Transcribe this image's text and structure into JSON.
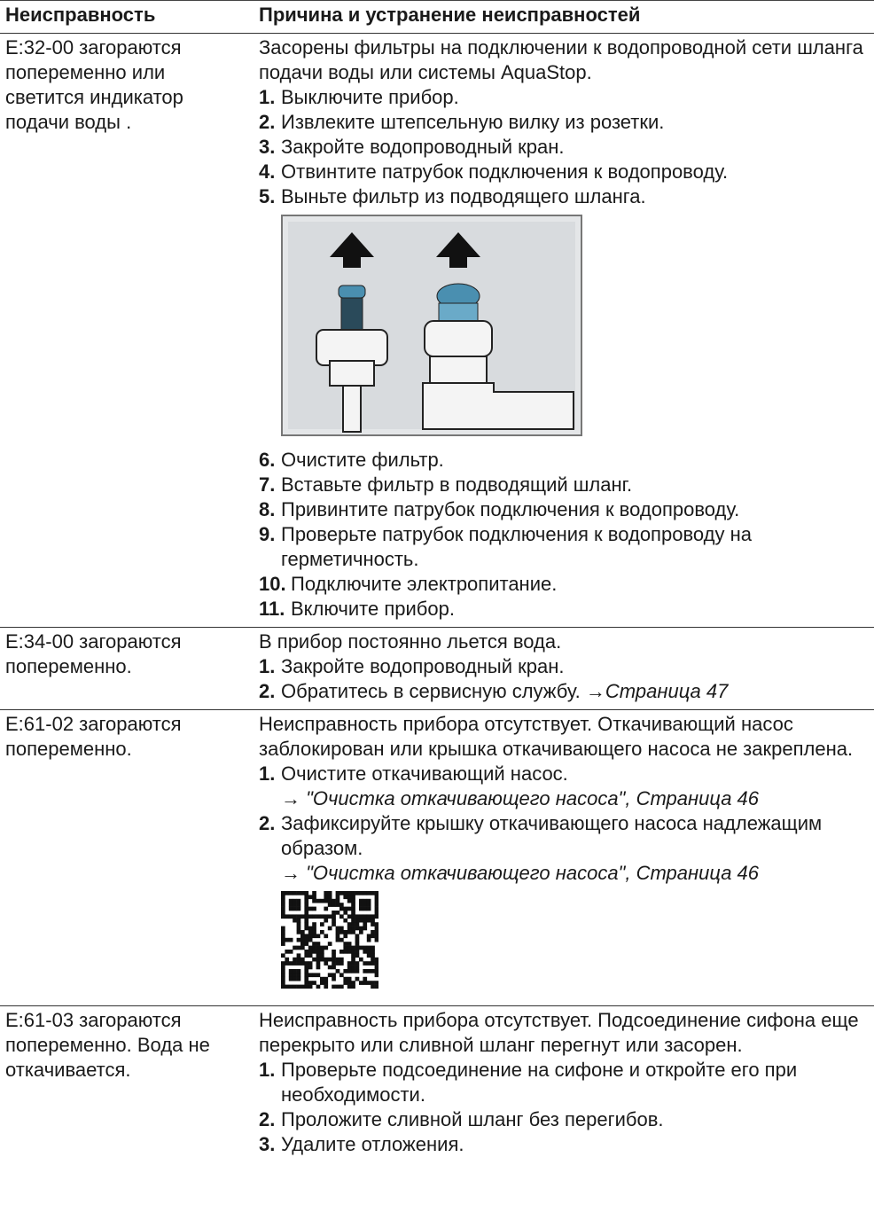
{
  "table": {
    "header": [
      "Неисправность",
      "Причина и устранение неисправностей"
    ],
    "rows": [
      {
        "fault": "E:32-00 загораются попеременно или светится индикатор подачи воды .",
        "intro": "Засорены фильтры на подключении к водопроводной сети шланга подачи воды или системы AquaStop.",
        "steps": [
          {
            "num": "1.",
            "text": "Выключите прибор."
          },
          {
            "num": "2.",
            "text": "Извлеките штепсельную вилку из розетки."
          },
          {
            "num": "3.",
            "text": "Закройте водопроводный кран."
          },
          {
            "num": "4.",
            "text": "Отвинтите патрубок подключения к водопроводу."
          },
          {
            "num": "5.",
            "text": "Выньте фильтр из подводящего шланга."
          },
          {
            "num": "6.",
            "text": "Очистите фильтр."
          },
          {
            "num": "7.",
            "text": "Вставьте фильтр в подводящий шланг."
          },
          {
            "num": "8.",
            "text": "Привинтите патрубок подключения к водопроводу."
          },
          {
            "num": "9.",
            "text": "Проверьте патрубок подключения к водопроводу на герметичность."
          },
          {
            "num": "10.",
            "text": "Подключите электропитание."
          },
          {
            "num": "11.",
            "text": "Включите прибор."
          }
        ]
      },
      {
        "fault": "E:34-00 загораются попеременно.",
        "intro": "В прибор постоянно льется вода.",
        "steps": [
          {
            "num": "1.",
            "text": "Закройте водопроводный кран."
          },
          {
            "num": "2.",
            "text": "Обратитесь в сервисную службу.",
            "link": "→Страница 47"
          }
        ]
      },
      {
        "fault": "E:61-02 загораются попеременно.",
        "intro": "Неисправность прибора отсутствует. Откачивающий насос заблокирован или крышка откачивающего насоса не закреплена.",
        "steps": [
          {
            "num": "1.",
            "text": "Очистите откачивающий насос.",
            "link": "→ \"Очистка откачивающего насоса\", Страница 46"
          },
          {
            "num": "2.",
            "text": "Зафиксируйте крышку откачивающего насоса надлежащим образом.",
            "link": "→ \"Очистка откачивающего насоса\", Страница 46"
          }
        ]
      },
      {
        "fault": "E:61-03 загораются попеременно. Вода не откачивается.",
        "intro": "Неисправность прибора отсутствует. Подсоединение сифона еще перекрыто или сливной шланг перегнут или засорен.",
        "steps": [
          {
            "num": "1.",
            "text": "Проверьте подсоединение на сифоне и откройте его при необходимости."
          },
          {
            "num": "2.",
            "text": "Проложите сливной шланг без перегибов."
          },
          {
            "num": "3.",
            "text": "Удалите отложения."
          }
        ]
      }
    ]
  }
}
